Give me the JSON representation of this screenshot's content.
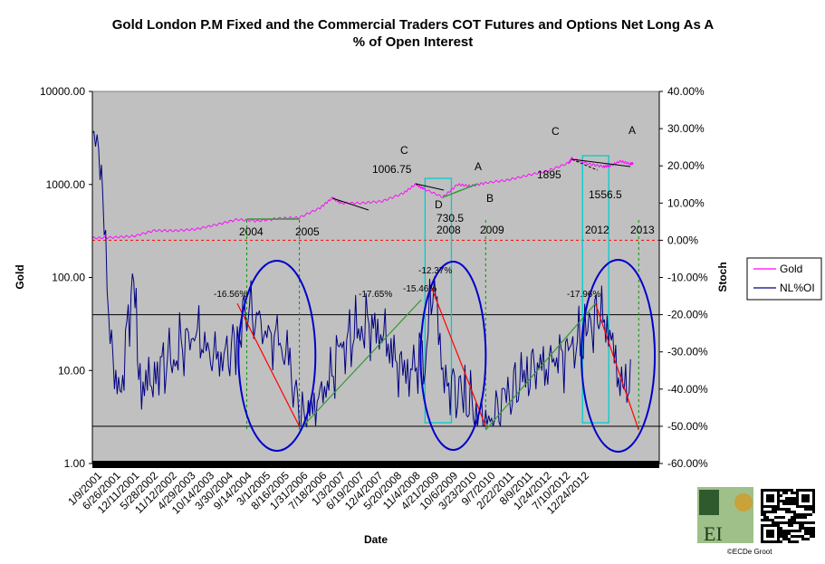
{
  "chart_data": {
    "type": "line",
    "title_line1": "Gold London P.M Fixed and the Commercial Traders COT Futures and Options Net Long As A",
    "title_line2": "% of Open Interest",
    "xlabel": "Date",
    "ylabel_left": "Gold",
    "ylabel_right": "Stoch",
    "y_left_scale": "log",
    "y_left_ticks": [
      "10000.00",
      "1000.00",
      "100.00",
      "10.00",
      "1.00"
    ],
    "y_left_range": [
      1,
      10000
    ],
    "y_right_ticks": [
      "40.00%",
      "30.00%",
      "20.00%",
      "10.00%",
      "0.00%",
      "-10.00%",
      "-20.00%",
      "-30.00%",
      "-40.00%",
      "-50.00%",
      "-60.00%"
    ],
    "y_right_range": [
      -60,
      40
    ],
    "x_range": [
      "2001-01-09",
      "2013-08-15"
    ],
    "x_tick_labels": [
      "1/9/2001",
      "6/26/2001",
      "12/11/2001",
      "5/28/2002",
      "11/12/2002",
      "4/29/2003",
      "10/14/2003",
      "3/30/2004",
      "9/14/2004",
      "3/1/2005",
      "8/16/2005",
      "1/31/2006",
      "7/18/2006",
      "1/3/2007",
      "6/19/2007",
      "12/4/2007",
      "5/20/2008",
      "11/4/2008",
      "4/21/2009",
      "10/6/2009",
      "3/23/2010",
      "9/7/2010",
      "2/22/2011",
      "8/9/2011",
      "1/24/2012",
      "7/10/2012",
      "12/24/2012"
    ],
    "legend": {
      "position": "right",
      "items": [
        "Gold",
        "NL%OI"
      ]
    },
    "series": [
      {
        "name": "Gold",
        "axis": "left",
        "color": "#ff00ff",
        "x": [
          "2001-01-09",
          "2001-06-26",
          "2001-12-11",
          "2002-05-28",
          "2002-11-12",
          "2003-04-29",
          "2003-10-14",
          "2004-03-30",
          "2004-09-14",
          "2005-03-01",
          "2005-08-16",
          "2006-01-31",
          "2006-05-12",
          "2006-07-18",
          "2007-01-03",
          "2007-06-19",
          "2007-12-04",
          "2008-03-17",
          "2008-05-20",
          "2008-10-24",
          "2009-02-20",
          "2009-06-01",
          "2009-10-06",
          "2010-03-23",
          "2010-09-07",
          "2011-02-22",
          "2011-08-09",
          "2011-09-06",
          "2012-01-24",
          "2012-05-16",
          "2012-07-10",
          "2012-10-05",
          "2012-12-24",
          "2013-01-15"
        ],
        "y": [
          265,
          270,
          278,
          320,
          318,
          330,
          370,
          420,
          405,
          432,
          440,
          560,
          720,
          630,
          630,
          660,
          800,
          1006.75,
          900,
          730.5,
          1000,
          960,
          1040,
          1110,
          1250,
          1400,
          1700,
          1895,
          1660,
          1556.5,
          1590,
          1780,
          1660,
          1690
        ]
      },
      {
        "name": "NL%OI",
        "axis": "right",
        "color": "#000080",
        "x": [
          "2001-01-09",
          "2001-03-01",
          "2001-04-15",
          "2001-06-26",
          "2001-09-01",
          "2001-12-11",
          "2002-01-20",
          "2002-05-28",
          "2002-11-12",
          "2003-04-29",
          "2003-10-14",
          "2004-03-30",
          "2004-06-15",
          "2004-09-14",
          "2005-03-01",
          "2005-06-01",
          "2005-08-16",
          "2006-01-31",
          "2006-07-18",
          "2007-01-03",
          "2007-06-19",
          "2007-12-04",
          "2008-03-01",
          "2008-06-01",
          "2008-08-15",
          "2008-11-04",
          "2009-04-21",
          "2009-08-01",
          "2009-10-06",
          "2010-03-23",
          "2010-09-07",
          "2011-02-22",
          "2011-08-09",
          "2012-01-24",
          "2012-04-01",
          "2012-07-10",
          "2012-10-01",
          "2012-11-15",
          "2012-12-24"
        ],
        "y": [
          29,
          29,
          0,
          -35,
          -40,
          -7,
          -40,
          -36,
          -30,
          -25,
          -33,
          -28,
          -17,
          -23,
          -28,
          -33,
          -49,
          -43,
          -30,
          -22,
          -25,
          -36,
          -35,
          -28,
          -13,
          -38,
          -42,
          -46,
          -50,
          -43,
          -35,
          -33,
          -30,
          -25,
          -18,
          -25,
          -38,
          -43,
          -32
        ]
      }
    ],
    "annotations": {
      "gold_labels": [
        "C",
        "1006.75",
        "D",
        "730.5",
        "A",
        "B",
        "C",
        "1895",
        "1556.5",
        "A"
      ],
      "years": [
        "2004",
        "2005",
        "2008",
        "2009",
        "2012",
        "2013"
      ],
      "percent_labels": [
        "-16.56%",
        "-17.65%",
        "-15.46%",
        "-12.37%",
        "-17.96%"
      ]
    },
    "reference_lines": {
      "right_axis_red_dashed": 0,
      "right_axis_black": [
        -20,
        -50
      ]
    }
  },
  "credit": "©ECDe Groot",
  "logo_text": "EI",
  "colors": {
    "plot_bg": "#c0c0c0",
    "gold": "#ff00ff",
    "nl_oi": "#000080",
    "ellipse": "#0000cc",
    "box": "#00cccc",
    "trend_red": "#ff0000",
    "trend_green": "#339933",
    "vertical_dashed": "#009900"
  }
}
